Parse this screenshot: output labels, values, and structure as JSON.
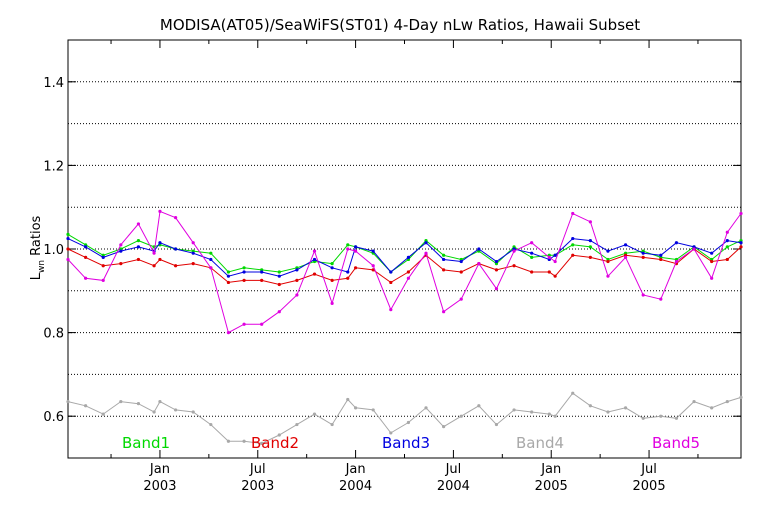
{
  "chart_data": {
    "type": "line",
    "title": "MODISA(AT05)/SeaWiFS(ST01) 4-Day nLw Ratios, Hawaii Subset",
    "ylabel_main": "L",
    "ylabel_sub": "wn",
    "ylabel_rest": " Ratios",
    "ylim": [
      0.5,
      1.5
    ],
    "yticks": [
      "0.6",
      "0.8",
      "1.0",
      "1.2",
      "1.4"
    ],
    "grid": true,
    "xlim": [
      2002.53,
      2005.97
    ],
    "xticks": [
      {
        "month": "Jan",
        "year": "2003",
        "value": 2003.0
      },
      {
        "month": "Jul",
        "year": "2003",
        "value": 2003.5
      },
      {
        "month": "Jan",
        "year": "2004",
        "value": 2004.0
      },
      {
        "month": "Jul",
        "year": "2004",
        "value": 2004.5
      },
      {
        "month": "Jan",
        "year": "2005",
        "value": 2005.0
      },
      {
        "month": "Jul",
        "year": "2005",
        "value": 2005.5
      }
    ],
    "x": [
      2002.53,
      2002.62,
      2002.71,
      2002.8,
      2002.89,
      2002.97,
      2003.0,
      2003.08,
      2003.17,
      2003.26,
      2003.35,
      2003.43,
      2003.52,
      2003.61,
      2003.7,
      2003.79,
      2003.88,
      2003.96,
      2004.0,
      2004.09,
      2004.18,
      2004.27,
      2004.36,
      2004.45,
      2004.54,
      2004.63,
      2004.72,
      2004.81,
      2004.9,
      2004.99,
      2005.02,
      2005.11,
      2005.2,
      2005.29,
      2005.38,
      2005.47,
      2005.56,
      2005.64,
      2005.73,
      2005.82,
      2005.9,
      2005.97
    ],
    "series": [
      {
        "name": "Band1",
        "color": "#00d800",
        "values": [
          1.035,
          1.01,
          0.985,
          1.0,
          1.02,
          1.005,
          1.01,
          1.0,
          0.995,
          0.99,
          0.945,
          0.955,
          0.95,
          0.945,
          0.955,
          0.97,
          0.965,
          1.01,
          1.005,
          0.99,
          0.945,
          0.975,
          1.02,
          0.985,
          0.975,
          0.995,
          0.965,
          1.005,
          0.98,
          0.985,
          0.985,
          1.01,
          1.005,
          0.975,
          0.99,
          0.995,
          0.98,
          0.975,
          1.005,
          0.975,
          1.005,
          1.02
        ]
      },
      {
        "name": "Band2",
        "color": "#e00000",
        "values": [
          1.0,
          0.98,
          0.96,
          0.965,
          0.975,
          0.96,
          0.975,
          0.96,
          0.965,
          0.955,
          0.92,
          0.925,
          0.925,
          0.915,
          0.925,
          0.94,
          0.925,
          0.93,
          0.955,
          0.95,
          0.92,
          0.945,
          0.985,
          0.95,
          0.945,
          0.965,
          0.95,
          0.96,
          0.945,
          0.945,
          0.935,
          0.985,
          0.98,
          0.97,
          0.985,
          0.98,
          0.975,
          0.965,
          1.0,
          0.97,
          0.975,
          1.005
        ]
      },
      {
        "name": "Band3",
        "color": "#0000e0",
        "values": [
          1.025,
          1.005,
          0.98,
          0.995,
          1.005,
          0.995,
          1.015,
          1.0,
          0.99,
          0.975,
          0.935,
          0.945,
          0.945,
          0.935,
          0.95,
          0.975,
          0.955,
          0.945,
          1.005,
          0.995,
          0.945,
          0.98,
          1.015,
          0.975,
          0.97,
          1.0,
          0.97,
          1.0,
          0.99,
          0.975,
          0.985,
          1.025,
          1.02,
          0.995,
          1.01,
          0.99,
          0.985,
          1.015,
          1.005,
          0.99,
          1.02,
          1.015
        ]
      },
      {
        "name": "Band4",
        "color": "#a8a8a8",
        "values": [
          0.635,
          0.625,
          0.605,
          0.635,
          0.63,
          0.61,
          0.635,
          0.615,
          0.61,
          0.58,
          0.54,
          0.54,
          0.535,
          0.555,
          0.58,
          0.605,
          0.58,
          0.64,
          0.62,
          0.615,
          0.56,
          0.585,
          0.62,
          0.575,
          0.6,
          0.625,
          0.58,
          0.615,
          0.61,
          0.605,
          0.6,
          0.655,
          0.625,
          0.61,
          0.62,
          0.595,
          0.6,
          0.595,
          0.635,
          0.62,
          0.635,
          0.645
        ]
      },
      {
        "name": "Band5",
        "color": "#e000e0",
        "values": [
          0.975,
          0.93,
          0.925,
          1.01,
          1.06,
          0.99,
          1.09,
          1.075,
          1.015,
          0.955,
          0.8,
          0.82,
          0.82,
          0.85,
          0.89,
          0.995,
          0.87,
          1.0,
          0.995,
          0.96,
          0.855,
          0.93,
          0.99,
          0.85,
          0.88,
          0.965,
          0.905,
          0.995,
          1.015,
          0.98,
          0.97,
          1.085,
          1.065,
          0.935,
          0.98,
          0.89,
          0.88,
          0.97,
          1.0,
          0.93,
          1.04,
          1.085
        ]
      }
    ]
  }
}
